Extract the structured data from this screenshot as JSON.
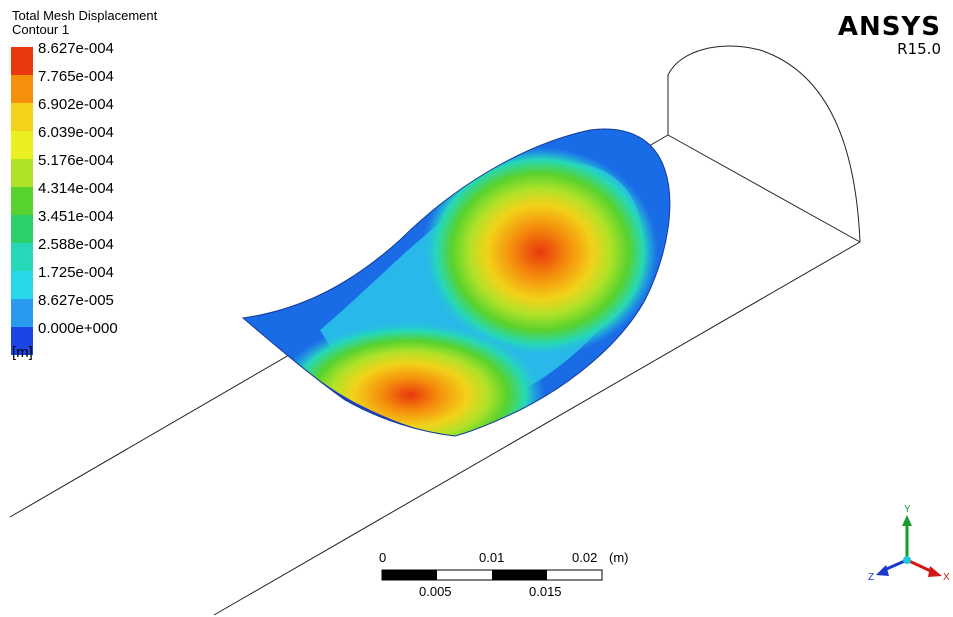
{
  "legend": {
    "title": "Total Mesh Displacement",
    "subtitle": "Contour 1",
    "labels": [
      "8.627e-004",
      "7.765e-004",
      "6.902e-004",
      "6.039e-004",
      "5.176e-004",
      "4.314e-004",
      "3.451e-004",
      "2.588e-004",
      "1.725e-004",
      "8.627e-005",
      "0.000e+000"
    ],
    "unit": "[m]",
    "colors": [
      "#e8380c",
      "#f5900c",
      "#f2d21a",
      "#eaf020",
      "#b0e228",
      "#58d22e",
      "#2cd06a",
      "#26d8b8",
      "#28d8ea",
      "#2a9aee",
      "#1a46e6"
    ]
  },
  "brand": {
    "name": "ANSYS",
    "version": "R15.0"
  },
  "scale_bar": {
    "top_labels": [
      "0",
      "0.01",
      "0.02"
    ],
    "unit": "(m)",
    "bottom_labels": [
      "0.005",
      "0.015"
    ]
  },
  "triad": {
    "x": "X",
    "y": "Y",
    "z": "Z"
  }
}
